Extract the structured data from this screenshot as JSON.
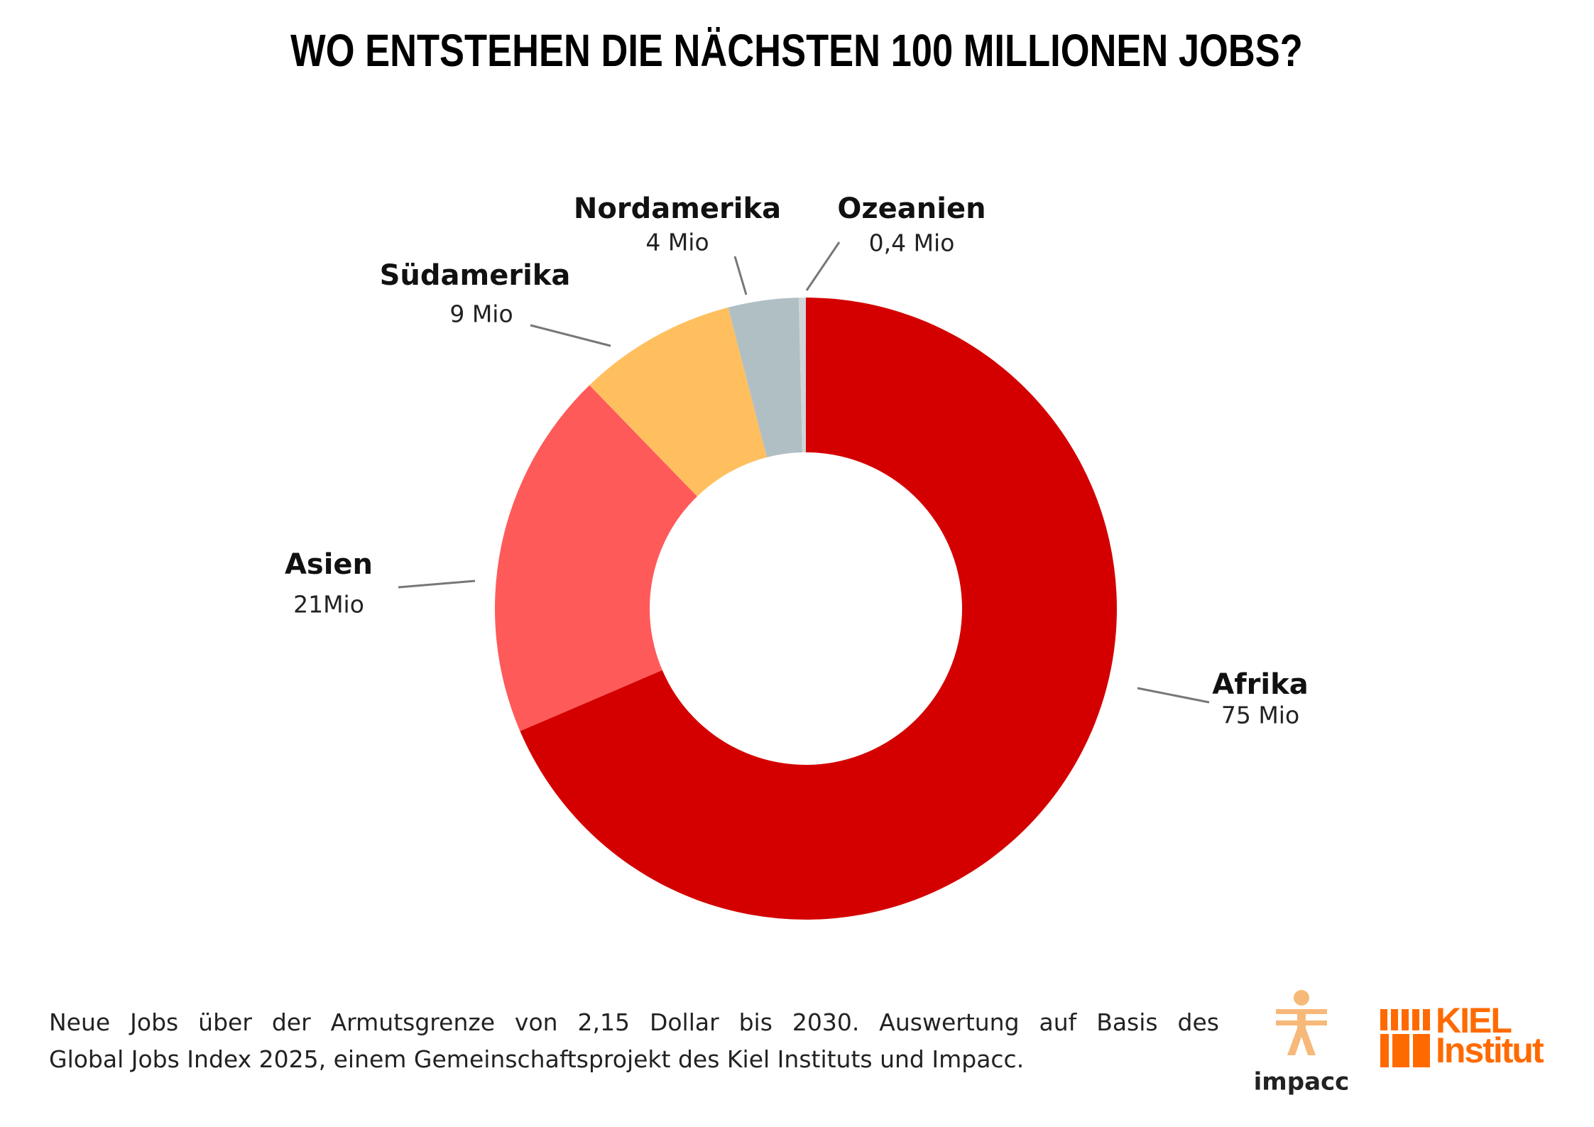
{
  "chart_data": {
    "type": "donut",
    "title": "WO ENTSTEHEN DIE NÄCHSTEN 100 MILLIONEN JOBS?",
    "categories": [
      "Afrika",
      "Asien",
      "Südamerika",
      "Nordamerika",
      "Ozeanien"
    ],
    "values": [
      75,
      21,
      9,
      4,
      0.4
    ],
    "value_labels": [
      "75 Mio",
      "21Mio",
      "9 Mio",
      "4 Mio",
      "0,4 Mio"
    ],
    "colors": [
      "#d40000",
      "#ff5a5a",
      "#ffbf5f",
      "#b0bfc4",
      "#cfd5d8"
    ]
  },
  "footnote": [
    "Neue Jobs über der Armutsgrenze von 2,15 Dollar bis 2030. Auswertung auf Basis des",
    "Global Jobs Index 2025, einem Gemeinschaftsprojekt des Kiel Instituts und Impacc."
  ],
  "logos": {
    "impacc": "impacc",
    "kiel": [
      "KIEL",
      "Institut"
    ]
  }
}
